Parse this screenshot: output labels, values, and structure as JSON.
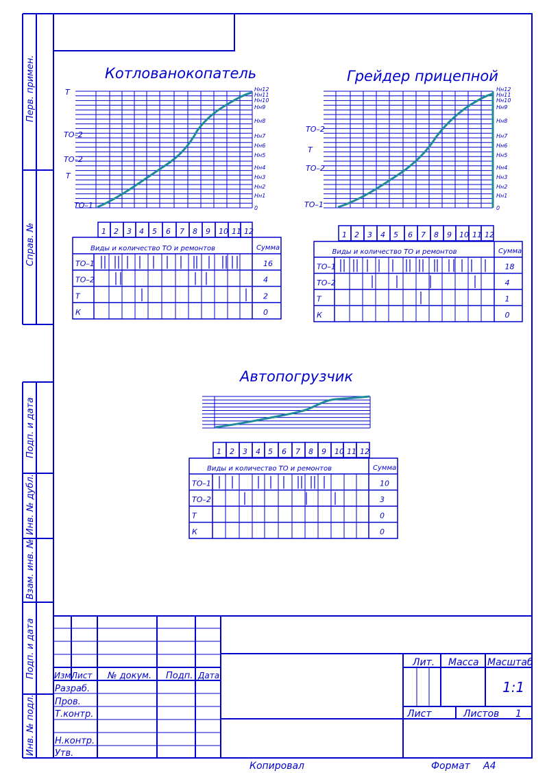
{
  "colors": {
    "line": "#0000cc",
    "curve": "#1f8a9a",
    "bg": "#ffffff"
  },
  "side_labels": [
    "Перв. примен.",
    "Справ. №",
    "Подп. и дата",
    "Инв. № дубл.",
    "Взам. инв. №",
    "Подп. и дата",
    "Инв. № подл."
  ],
  "diagrams": [
    {
      "title": "Котлованокопатель",
      "left_labels": [
        "Т",
        "ТО–2",
        "ТО–2",
        "Т",
        "ТО–1"
      ],
      "right_labels": [
        "Нн12",
        "Нн11",
        "Нн10",
        "Нн9",
        "Нн8",
        "Нн7",
        "Нн6",
        "Нн5",
        "Нн4",
        "Нн3",
        "Нн2",
        "Нн1",
        "0"
      ],
      "months": [
        "1",
        "2",
        "3",
        "4",
        "5",
        "6",
        "7",
        "8",
        "9",
        "10",
        "11",
        "12"
      ],
      "table": {
        "header": "Виды и количество ТО и ремонтов",
        "sum_header": "Сумма",
        "rows": [
          {
            "label": "ТО–1",
            "sum": "16"
          },
          {
            "label": "ТО–2",
            "sum": "4"
          },
          {
            "label": "Т",
            "sum": "2"
          },
          {
            "label": "К",
            "sum": "0"
          }
        ]
      }
    },
    {
      "title": "Грейдер прицепной",
      "left_labels": [
        "ТО–2",
        "Т",
        "ТО–2",
        "ТО–1"
      ],
      "right_labels": [
        "Нн12",
        "Нн11",
        "Нн10",
        "Нн9",
        "Нн8",
        "Нн7",
        "Нн6",
        "Нн5",
        "Нн4",
        "Нн3",
        "Нн2",
        "Нн1",
        "0"
      ],
      "months": [
        "1",
        "2",
        "3",
        "4",
        "5",
        "6",
        "7",
        "8",
        "9",
        "10",
        "11",
        "12"
      ],
      "table": {
        "header": "Виды и количество ТО и ремонтов",
        "sum_header": "Сумма",
        "rows": [
          {
            "label": "ТО–1",
            "sum": "18"
          },
          {
            "label": "ТО–2",
            "sum": "4"
          },
          {
            "label": "Т",
            "sum": "1"
          },
          {
            "label": "К",
            "sum": "0"
          }
        ]
      }
    },
    {
      "title": "Автопогрузчик",
      "months": [
        "1",
        "2",
        "3",
        "4",
        "5",
        "6",
        "7",
        "8",
        "9",
        "10",
        "11",
        "12"
      ],
      "table": {
        "header": "Виды и количество ТО и ремонтов",
        "sum_header": "Сумма",
        "rows": [
          {
            "label": "ТО–1",
            "sum": "10"
          },
          {
            "label": "ТО–2",
            "sum": "3"
          },
          {
            "label": "Т",
            "sum": "0"
          },
          {
            "label": "К",
            "sum": "0"
          }
        ]
      }
    }
  ],
  "title_block": {
    "col_izm": "Изм.",
    "col_list": "Лист",
    "col_doc": "№ докум.",
    "col_podp": "Подп.",
    "col_data": "Дата",
    "razrab": "Разраб.",
    "prov": "Пров.",
    "tkontr": "Т.контр.",
    "nkontr": "Н.контр.",
    "utv": "Утв.",
    "lit": "Лит.",
    "massa": "Масса",
    "masshtab": "Масштаб",
    "scale_value": "1:1",
    "sheet": "Лист",
    "sheets": "Листов",
    "sheets_value": "1"
  },
  "footer": {
    "copied": "Копировал",
    "format_label": "Формат",
    "format_value": "А4"
  }
}
